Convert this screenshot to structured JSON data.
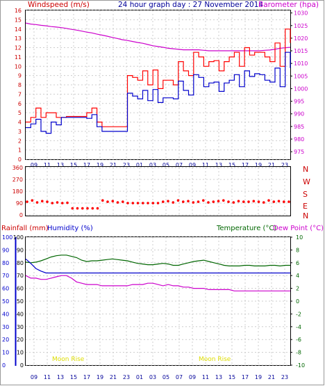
{
  "header": {
    "left_title": "Windspeed (m/s)",
    "center_title": "24 hour graph day : 27 November 2014",
    "right_title": "Barometer (hpa)"
  },
  "colors": {
    "wind_gust": "#ff0000",
    "wind_avg": "#0000cc",
    "barometer": "#cc00cc",
    "direction": "#ff0000",
    "humidity": "#cc00cc",
    "rainfall": "#0000cc",
    "temperature": "#006600",
    "dewpoint": "#0000cc",
    "moonrise": "#dddd00",
    "grid": "#cccccc"
  },
  "middle": {
    "compass": [
      "N",
      "W",
      "S",
      "E",
      "N"
    ]
  },
  "bottom": {
    "rainfall_label": "Rainfall (mm)",
    "humidity_label": "Humidity (%)",
    "temperature_label": "Temperature (°C)",
    "dewpoint_label": "Dew Point (°C)",
    "moonrise_labels": [
      "Moon Rise",
      "Moon Rise"
    ]
  },
  "chart_data": [
    {
      "type": "line",
      "x_tick_labels": [
        "09",
        "11",
        "13",
        "15",
        "17",
        "19",
        "21",
        "23",
        "01",
        "03",
        "05",
        "07",
        "09",
        "11",
        "13",
        "15",
        "17",
        "19",
        "21",
        "23"
      ],
      "y_left_ticks": [
        "16",
        "15",
        "14",
        "13",
        "12",
        "11",
        "10",
        "9",
        "8",
        "7",
        "6",
        "5",
        "4",
        "3",
        "2",
        "1",
        "0"
      ],
      "y_right_ticks": [
        "1030",
        "1025",
        "1020",
        "1015",
        "1010",
        "1005",
        "1000",
        "995",
        "990",
        "985",
        "980",
        "975"
      ],
      "y_left_range": [
        0,
        16
      ],
      "y_right_range": [
        972,
        1031
      ],
      "series": [
        {
          "role": "gust",
          "values": [
            4,
            4.5,
            5.5,
            4.5,
            5,
            5,
            4.5,
            4.5,
            4.6,
            4.6,
            4.6,
            4.6,
            5,
            5.5,
            4,
            3.5,
            3.5,
            3.5,
            3.5,
            3.5,
            9,
            8.8,
            8.5,
            9.5,
            8,
            9.6,
            7.6,
            8.5,
            8.5,
            8,
            10.5,
            9.5,
            9,
            11.5,
            11,
            10,
            10.5,
            10.6,
            9.5,
            10.5,
            11,
            11.5,
            10,
            12,
            11.2,
            11.5,
            11.5,
            11,
            10.5,
            12.5,
            10,
            14,
            12.5
          ]
        },
        {
          "role": "average",
          "values": [
            3.4,
            3.8,
            4.3,
            3.0,
            2.8,
            4.0,
            3.7,
            4.5,
            4.5,
            4.5,
            4.5,
            4.5,
            4.4,
            4.8,
            3.5,
            3.0,
            3.0,
            3.0,
            3.0,
            3.0,
            7.1,
            6.8,
            6.5,
            7.4,
            6.3,
            7.5,
            6.1,
            6.6,
            6.6,
            6.5,
            8.4,
            7.4,
            6.9,
            9.1,
            8.8,
            7.8,
            8.2,
            8.3,
            7.3,
            8.2,
            8.5,
            9.1,
            7.8,
            9.5,
            8.9,
            9.2,
            9.1,
            8.5,
            8.3,
            9.8,
            7.8,
            11.5,
            9.8
          ]
        },
        {
          "role": "barometer",
          "values": [
            1026,
            1025.6,
            1025.4,
            1025.1,
            1024.9,
            1024.6,
            1024.4,
            1024.2,
            1023.9,
            1023.5,
            1023.2,
            1022.8,
            1022.4,
            1022.1,
            1021.6,
            1021.2,
            1020.8,
            1020.3,
            1019.9,
            1019.4,
            1019.1,
            1018.7,
            1018.3,
            1018,
            1017.5,
            1017,
            1016.7,
            1016.4,
            1016,
            1015.8,
            1015.6,
            1015.4,
            1015.4,
            1015.4,
            1015.4,
            1015.2,
            1015,
            1015,
            1015,
            1015,
            1015,
            1015,
            1015,
            1015,
            1015,
            1015,
            1015,
            1015.2,
            1015.3,
            1015.6,
            1016,
            1016.2,
            1016.4
          ]
        }
      ]
    },
    {
      "type": "scatter",
      "y_ticks": [
        "360",
        "270",
        "180",
        "90",
        "0"
      ],
      "y_range": [
        0,
        360
      ],
      "series": [
        {
          "role": "direction",
          "values": [
            100,
            110,
            95,
            105,
            100,
            90,
            95,
            90,
            92,
            50,
            50,
            50,
            50,
            50,
            50,
            110,
            100,
            105,
            95,
            100,
            90,
            90,
            90,
            90,
            90,
            90,
            90,
            100,
            105,
            95,
            110,
            100,
            105,
            95,
            100,
            110,
            95,
            100,
            105,
            110,
            100,
            95,
            105,
            100,
            100,
            105,
            100,
            95,
            110,
            100,
            105,
            100,
            100
          ]
        }
      ]
    },
    {
      "type": "line",
      "left_axis_ticks_1": [
        "100",
        "90",
        "80",
        "70",
        "60",
        "50",
        "40",
        "30",
        "20",
        "10",
        "0"
      ],
      "left_axis_ticks_2": [
        "100",
        "90",
        "80",
        "70",
        "60",
        "50",
        "40",
        "30",
        "20",
        "10",
        "0"
      ],
      "right_axis_ticks": [
        "10",
        "8",
        "6",
        "4",
        "2",
        "0",
        "-2",
        "-4",
        "-6",
        "-8",
        "-10"
      ],
      "x_tick_labels": [
        "09",
        "11",
        "13",
        "15",
        "17",
        "19",
        "21",
        "23",
        "01",
        "03",
        "05",
        "07",
        "09",
        "11",
        "13",
        "15",
        "17",
        "19",
        "21",
        "23"
      ],
      "humidity_range": [
        0,
        100
      ],
      "temperature_range": [
        -10,
        10
      ],
      "series": [
        {
          "role": "humidity",
          "values": [
            70,
            68,
            68,
            67,
            67,
            68,
            69,
            70,
            70,
            68,
            65,
            64,
            63,
            63,
            63,
            62,
            62,
            62,
            62,
            62,
            62,
            63,
            63,
            63,
            64,
            64,
            63,
            62,
            63,
            62,
            62,
            61,
            61,
            60,
            60,
            60,
            59,
            59,
            59,
            59,
            59,
            58,
            58,
            58,
            58,
            58,
            58,
            58,
            58,
            58,
            58,
            58,
            58
          ]
        },
        {
          "role": "dewpoint",
          "values": [
            6.6,
            5.9,
            5.1,
            4.7,
            4.4,
            4.4,
            4.4,
            4.4,
            4.4,
            4.4,
            4.4,
            4.4,
            4.4,
            4.4,
            4.4,
            4.4,
            4.4,
            4.4,
            4.4,
            4.4,
            4.4,
            4.4,
            4.4,
            4.4,
            4.4,
            4.4,
            4.4,
            4.4,
            4.4,
            4.4,
            4.4,
            4.4,
            4.4,
            4.4,
            4.4,
            4.4,
            4.4,
            4.4,
            4.4,
            4.4,
            4.4,
            4.4,
            4.4,
            4.4,
            4.4,
            4.4,
            4.4,
            4.4,
            4.4,
            4.4,
            4.4,
            4.4,
            4.4
          ]
        },
        {
          "role": "temperature",
          "values": [
            6.1,
            6.0,
            6.1,
            6.3,
            6.6,
            6.9,
            7.1,
            7.2,
            7.2,
            7.0,
            6.8,
            6.4,
            6.2,
            6.3,
            6.3,
            6.4,
            6.5,
            6.6,
            6.5,
            6.4,
            6.3,
            6.1,
            5.9,
            5.8,
            5.7,
            5.7,
            5.8,
            5.9,
            5.8,
            5.6,
            5.6,
            5.8,
            6.0,
            6.2,
            6.3,
            6.4,
            6.2,
            6.0,
            5.8,
            5.6,
            5.5,
            5.5,
            5.5,
            5.6,
            5.6,
            5.5,
            5.5,
            5.5,
            5.6,
            5.6,
            5.5,
            5.6,
            5.6
          ]
        }
      ]
    }
  ]
}
